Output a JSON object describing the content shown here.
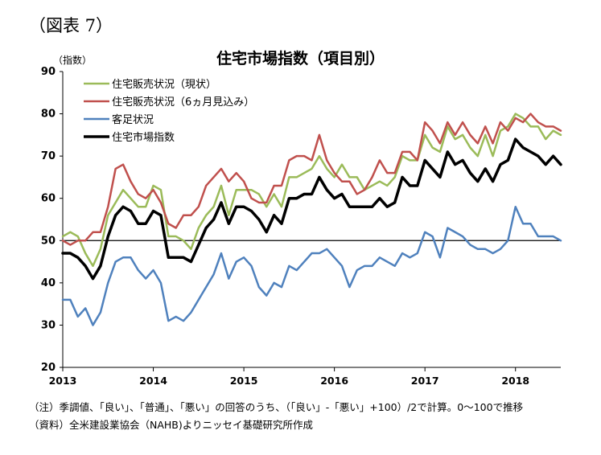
{
  "figure_label": "（図表 7）",
  "notes": [
    "（注）季調値、「良い」、「普通」、「悪い」の回答のうち、（「良い」-「悪い」+100）/2で計算。0～100で推移",
    "（資料）全米建設業協会（NAHB)よりニッセイ基礎研究所作成"
  ],
  "chart_data": {
    "type": "line",
    "title": "住宅市場指数（項目別）",
    "ylabel": "（指数）",
    "xlabel": "",
    "ylim": [
      20,
      90
    ],
    "yticks": [
      20,
      30,
      40,
      50,
      60,
      70,
      80,
      90
    ],
    "xlim": [
      2013.0,
      2018.5
    ],
    "xticks": [
      "2013",
      "2014",
      "2015",
      "2016",
      "2017",
      "2018"
    ],
    "reference_line": 50,
    "grid": false,
    "legend_position": "top-left",
    "x": [
      2013.0,
      2013.0833,
      2013.1667,
      2013.25,
      2013.3333,
      2013.4167,
      2013.5,
      2013.5833,
      2013.6667,
      2013.75,
      2013.8333,
      2013.9167,
      2014.0,
      2014.0833,
      2014.1667,
      2014.25,
      2014.3333,
      2014.4167,
      2014.5,
      2014.5833,
      2014.6667,
      2014.75,
      2014.8333,
      2014.9167,
      2015.0,
      2015.0833,
      2015.1667,
      2015.25,
      2015.3333,
      2015.4167,
      2015.5,
      2015.5833,
      2015.6667,
      2015.75,
      2015.8333,
      2015.9167,
      2016.0,
      2016.0833,
      2016.1667,
      2016.25,
      2016.3333,
      2016.4167,
      2016.5,
      2016.5833,
      2016.6667,
      2016.75,
      2016.8333,
      2016.9167,
      2017.0,
      2017.0833,
      2017.1667,
      2017.25,
      2017.3333,
      2017.4167,
      2017.5,
      2017.5833,
      2017.6667,
      2017.75,
      2017.8333,
      2017.9167,
      2018.0,
      2018.0833,
      2018.1667,
      2018.25,
      2018.3333,
      2018.4167,
      2018.5
    ],
    "series": [
      {
        "name": "住宅販売状況（現状）",
        "color": "#9BBB59",
        "width": 2.5,
        "values": [
          51,
          52,
          51,
          47,
          44,
          48,
          56,
          59,
          62,
          60,
          58,
          58,
          63,
          62,
          51,
          51,
          50,
          48,
          53,
          56,
          58,
          63,
          56,
          62,
          62,
          62,
          61,
          58,
          61,
          58,
          65,
          65,
          66,
          67,
          70,
          67,
          65,
          68,
          65,
          65,
          62,
          63,
          64,
          63,
          65,
          70,
          69,
          69,
          75,
          72,
          71,
          77,
          74,
          75,
          72,
          70,
          75,
          70,
          76,
          77,
          80,
          79,
          77,
          77,
          74,
          76,
          75
        ]
      },
      {
        "name": "住宅販売状況（6ヵ月見込み）",
        "color": "#C0504D",
        "width": 2.5,
        "values": [
          50,
          49,
          50,
          50,
          52,
          52,
          58,
          67,
          68,
          64,
          61,
          60,
          62,
          59,
          54,
          53,
          56,
          56,
          58,
          63,
          65,
          67,
          64,
          66,
          64,
          60,
          59,
          59,
          63,
          63,
          69,
          70,
          70,
          69,
          75,
          69,
          66,
          64,
          64,
          61,
          62,
          65,
          69,
          66,
          66,
          71,
          71,
          69,
          78,
          76,
          73,
          78,
          75,
          78,
          75,
          73,
          77,
          73,
          78,
          76,
          79,
          78,
          80,
          78,
          77,
          77,
          76
        ]
      },
      {
        "name": "客足状況",
        "color": "#4F81BD",
        "width": 2.5,
        "values": [
          36,
          36,
          32,
          34,
          30,
          33,
          40,
          45,
          46,
          46,
          43,
          41,
          43,
          40,
          31,
          32,
          31,
          33,
          36,
          39,
          42,
          47,
          41,
          45,
          46,
          44,
          39,
          37,
          40,
          39,
          44,
          43,
          45,
          47,
          47,
          48,
          46,
          44,
          39,
          43,
          44,
          44,
          46,
          45,
          44,
          47,
          46,
          47,
          52,
          51,
          46,
          53,
          52,
          51,
          49,
          48,
          48,
          47,
          48,
          50,
          58,
          54,
          54,
          51,
          51,
          51,
          50
        ]
      },
      {
        "name": "住宅市場指数",
        "color": "#000000",
        "width": 3.5,
        "values": [
          47,
          47,
          46,
          44,
          41,
          44,
          51,
          56,
          58,
          57,
          54,
          54,
          57,
          56,
          46,
          46,
          46,
          45,
          49,
          53,
          55,
          59,
          54,
          58,
          58,
          57,
          55,
          52,
          56,
          54,
          60,
          60,
          61,
          61,
          65,
          62,
          60,
          61,
          58,
          58,
          58,
          58,
          60,
          58,
          59,
          65,
          63,
          63,
          69,
          67,
          65,
          71,
          68,
          69,
          66,
          64,
          67,
          64,
          68,
          69,
          74,
          72,
          71,
          70,
          68,
          70,
          68
        ]
      }
    ]
  }
}
